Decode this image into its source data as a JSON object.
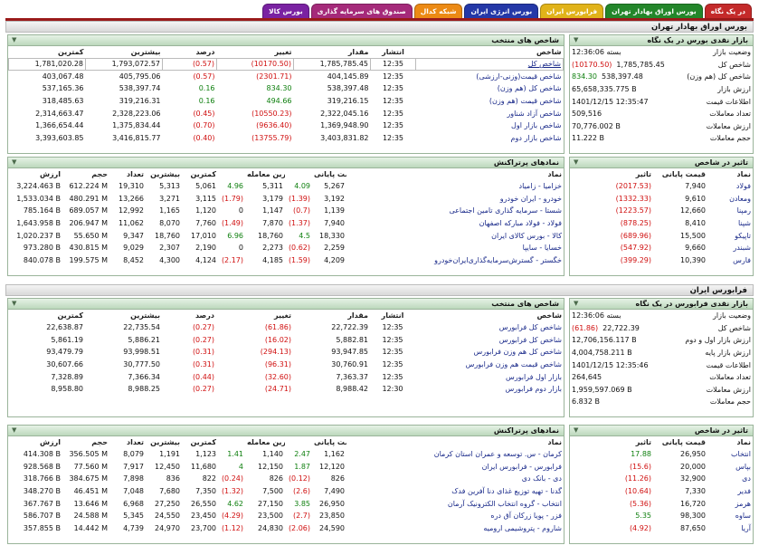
{
  "tabs": [
    {
      "label": "در یک نگاه",
      "color": "#c42a2a"
    },
    {
      "label": "بورس اوراق بهادار تهران",
      "color": "#23862a"
    },
    {
      "label": "فرابورس ایران",
      "color": "#e1b319"
    },
    {
      "label": "بورس انرژی ایران",
      "color": "#2438a7"
    },
    {
      "label": "شبکه کدال",
      "color": "#ec8a14"
    },
    {
      "label": "صندوق های سرمایه گذاری",
      "color": "#a52a7a"
    },
    {
      "label": "بورس کالا",
      "color": "#7a22a2"
    }
  ],
  "s1": {
    "title": "بورس اوراق بهادار تهران",
    "glance": {
      "title": "بازار نقدی بورس در یک نگاه",
      "rows": [
        {
          "k": "وضعیت بازار",
          "v": "بسته 12:36:06"
        },
        {
          "k": "شاخص کل",
          "v": "(10170.50)",
          "v2": "1,785,785.45",
          "c": "neg"
        },
        {
          "k": "شاخص کل (هم وزن)",
          "v": "834.30",
          "v2": "538,397.48",
          "c": "pos"
        },
        {
          "k": "ارزش بازار",
          "v": "65,658,335.775 B"
        },
        {
          "k": "اطلاعات قیمت",
          "v": "1401/12/15 12:35:47"
        },
        {
          "k": "تعداد معاملات",
          "v": "509,516"
        },
        {
          "k": "ارزش معاملات",
          "v": "70,776.002 B"
        },
        {
          "k": "حجم معاملات",
          "v": "11.222 B"
        }
      ]
    },
    "indices": {
      "title": "شاخص های منتخب",
      "headers": [
        "شاخص",
        "انتشار",
        "مقدار",
        "تغییر",
        "درصد",
        "بیشترین",
        "کمترین"
      ],
      "rows": [
        {
          "name": "شاخص کل",
          "time": "12:35",
          "value": "1,785,785.45",
          "change": "(10170.50)",
          "pct": "(0.57)",
          "high": "1,793,072.57",
          "low": "1,781,020.28",
          "c": "neg",
          "boxed": true
        },
        {
          "name": "شاخص قیمت(وزنی-ارزشی)",
          "time": "12:35",
          "value": "404,145.89",
          "change": "(2301.71)",
          "pct": "(0.57)",
          "high": "405,795.06",
          "low": "403,067.48",
          "c": "neg"
        },
        {
          "name": "شاخص کل (هم وزن)",
          "time": "12:35",
          "value": "538,397.48",
          "change": "834.30",
          "pct": "0.16",
          "high": "538,397.74",
          "low": "537,165.36",
          "c": "pos"
        },
        {
          "name": "شاخص قیمت (هم وزن)",
          "time": "12:35",
          "value": "319,216.15",
          "change": "494.66",
          "pct": "0.16",
          "high": "319,216.31",
          "low": "318,485.63",
          "c": "pos"
        },
        {
          "name": "شاخص آزاد شناور",
          "time": "12:35",
          "value": "2,322,045.16",
          "change": "(10550.23)",
          "pct": "(0.45)",
          "high": "2,328,223.06",
          "low": "2,314,663.47",
          "c": "neg"
        },
        {
          "name": "شاخص بازار اول",
          "time": "12:35",
          "value": "1,369,948.90",
          "change": "(9636.40)",
          "pct": "(0.70)",
          "high": "1,375,834.44",
          "low": "1,366,654.44",
          "c": "neg"
        },
        {
          "name": "شاخص بازار دوم",
          "time": "12:35",
          "value": "3,403,831.82",
          "change": "(13755.79)",
          "pct": "(0.40)",
          "high": "3,416,815.77",
          "low": "3,393,603.85",
          "c": "neg"
        }
      ]
    },
    "impact": {
      "title": "تاثیر در شاخص",
      "headers": [
        "نماد",
        "قیمت پایانی",
        "تاثیر"
      ],
      "rows": [
        {
          "sym": "فولاد",
          "price": "7,940",
          "impact": "(2017.53)",
          "c": "neg"
        },
        {
          "sym": "ومعادن",
          "price": "9,610",
          "impact": "(1332.33)",
          "c": "neg"
        },
        {
          "sym": "رمپنا",
          "price": "12,660",
          "impact": "(1223.57)",
          "c": "neg"
        },
        {
          "sym": "شپنا",
          "price": "8,410",
          "impact": "(878.25)",
          "c": "neg"
        },
        {
          "sym": "تاپیکو",
          "price": "15,500",
          "impact": "(689.96)",
          "c": "neg"
        },
        {
          "sym": "شبندر",
          "price": "9,660",
          "impact": "(547.92)",
          "c": "neg"
        },
        {
          "sym": "فارس",
          "price": "10,390",
          "impact": "(399.29)",
          "c": "neg"
        }
      ]
    },
    "active": {
      "title": "نمادهای پرتراکنش",
      "headers": [
        "نماد",
        "قیمت پایانی",
        "",
        "آخرین معامله",
        "",
        "کمترین",
        "بیشترین",
        "تعداد",
        "حجم",
        "ارزش"
      ],
      "rows": [
        {
          "name": "خزامیا - زامیاد",
          "close": "5,267",
          "cc": "4.09",
          "last": "5,311",
          "lc": "4.96",
          "low": "5,061",
          "high": "5,313",
          "count": "19,310",
          "vol": "612.224 M",
          "val": "3,224.463 B",
          "c1": "pos",
          "c2": "pos"
        },
        {
          "name": "خودرو - ایران خودرو",
          "close": "3,192",
          "cc": "(1.39)",
          "last": "3,179",
          "lc": "(1.79)",
          "low": "3,115",
          "high": "3,271",
          "count": "13,266",
          "vol": "480.291 M",
          "val": "1,533.034 B",
          "c1": "neg",
          "c2": "neg"
        },
        {
          "name": "شستا - سرمایه گذاری تامین اجتماعی",
          "close": "1,139",
          "cc": "(0.7)",
          "last": "1,147",
          "lc": "0",
          "low": "1,120",
          "high": "1,165",
          "count": "12,992",
          "vol": "689.057 M",
          "val": "785.164 B",
          "c1": "neg",
          "c2": ""
        },
        {
          "name": "فولاد - فولاد مبارکه اصفهان",
          "close": "7,940",
          "cc": "(1.37)",
          "last": "7,870",
          "lc": "(1.49)",
          "low": "7,760",
          "high": "8,070",
          "count": "11,062",
          "vol": "206.947 M",
          "val": "1,643.958 B",
          "c1": "neg",
          "c2": "neg"
        },
        {
          "name": "کالا - بورس کالای ایران",
          "close": "18,330",
          "cc": "4.5",
          "last": "18,760",
          "lc": "6.96",
          "low": "17,010",
          "high": "18,760",
          "count": "9,347",
          "vol": "55.650 M",
          "val": "1,020.237 B",
          "c1": "pos",
          "c2": "pos"
        },
        {
          "name": "خسایا - سایپا",
          "close": "2,259",
          "cc": "(0.62)",
          "last": "2,273",
          "lc": "0",
          "low": "2,190",
          "high": "2,307",
          "count": "9,029",
          "vol": "430.815 M",
          "val": "973.280 B",
          "c1": "neg",
          "c2": ""
        },
        {
          "name": "خگستر - گسترش‌سرمایه‌گذاری‌ایران‌خودرو",
          "close": "4,209",
          "cc": "(1.59)",
          "last": "4,185",
          "lc": "(2.17)",
          "low": "4,124",
          "high": "4,300",
          "count": "8,452",
          "vol": "199.575 M",
          "val": "840.078 B",
          "c1": "neg",
          "c2": "neg"
        }
      ]
    }
  },
  "s2": {
    "title": "فرابورس ایران",
    "glance": {
      "title": "بازار نقدی فرابورس در یک نگاه",
      "rows": [
        {
          "k": "وضعیت بازار",
          "v": "بسته 12:36:06"
        },
        {
          "k": "شاخص کل",
          "v": "(61.86)",
          "v2": "22,722.39",
          "c": "neg"
        },
        {
          "k": "ارزش بازار اول و دوم",
          "v": "12,706,156.117 B"
        },
        {
          "k": "ارزش بازار پایه",
          "v": "4,004,758.211 B"
        },
        {
          "k": "اطلاعات قیمت",
          "v": "1401/12/15 12:35:46"
        },
        {
          "k": "تعداد معاملات",
          "v": "264,645"
        },
        {
          "k": "ارزش معاملات",
          "v": "1,959,597.069 B"
        },
        {
          "k": "حجم معاملات",
          "v": "6.832 B"
        }
      ]
    },
    "indices": {
      "title": "شاخص های منتخب",
      "headers": [
        "شاخص",
        "انتشار",
        "مقدار",
        "تغییر",
        "درصد",
        "بیشترین",
        "کمترین"
      ],
      "rows": [
        {
          "name": "شاخص کل فرابورس",
          "time": "12:35",
          "value": "22,722.39",
          "change": "(61.86)",
          "pct": "(0.27)",
          "high": "22,735.54",
          "low": "22,638.87",
          "c": "neg"
        },
        {
          "name": "شاخص کل فرابورس",
          "time": "12:35",
          "value": "5,882.81",
          "change": "(16.02)",
          "pct": "(0.27)",
          "high": "5,886.21",
          "low": "5,861.19",
          "c": "neg"
        },
        {
          "name": "شاخص کل هم وزن فرابورس",
          "time": "12:35",
          "value": "93,947.85",
          "change": "(294.13)",
          "pct": "(0.31)",
          "high": "93,998.51",
          "low": "93,479.79",
          "c": "neg"
        },
        {
          "name": "شاخص قیمت هم وزن فرابورس",
          "time": "12:35",
          "value": "30,760.91",
          "change": "(96.31)",
          "pct": "(0.31)",
          "high": "30,777.50",
          "low": "30,607.66",
          "c": "neg"
        },
        {
          "name": "بازار اول فرابورس",
          "time": "12:35",
          "value": "7,363.37",
          "change": "(32.60)",
          "pct": "(0.44)",
          "high": "7,366.34",
          "low": "7,328.89",
          "c": "neg"
        },
        {
          "name": "بازار دوم فرابورس",
          "time": "12:30",
          "value": "8,988.42",
          "change": "(24.71)",
          "pct": "(0.27)",
          "high": "8,988.25",
          "low": "8,958.80",
          "c": "neg"
        }
      ]
    },
    "impact": {
      "title": "تاثیر در شاخص",
      "headers": [
        "نماد",
        "قیمت پایانی",
        "تاثیر"
      ],
      "rows": [
        {
          "sym": "انتخاب",
          "price": "26,950",
          "impact": "17.88",
          "c": "pos"
        },
        {
          "sym": "بپاس",
          "price": "20,000",
          "impact": "(15.6)",
          "c": "neg"
        },
        {
          "sym": "دی",
          "price": "32,900",
          "impact": "(11.26)",
          "c": "neg"
        },
        {
          "sym": "فدیر",
          "price": "7,330",
          "impact": "(10.64)",
          "c": "neg"
        },
        {
          "sym": "هرمز",
          "price": "16,720",
          "impact": "(5.36)",
          "c": "neg"
        },
        {
          "sym": "ساوه",
          "price": "98,300",
          "impact": "5.35",
          "c": "pos"
        },
        {
          "sym": "آریا",
          "price": "87,650",
          "impact": "(4.92)",
          "c": "neg"
        }
      ]
    },
    "active": {
      "title": "نمادهای پرتراکنش",
      "headers": [
        "نماد",
        "قیمت پایانی",
        "",
        "آخرین معامله",
        "",
        "کمترین",
        "بیشترین",
        "تعداد",
        "حجم",
        "ارزش"
      ],
      "rows": [
        {
          "name": "کرمان - س. توسعه و عمران استان کرمان",
          "close": "1,162",
          "cc": "2.47",
          "last": "1,140",
          "lc": "1.41",
          "low": "1,123",
          "high": "1,191",
          "count": "8,079",
          "vol": "356.505 M",
          "val": "414.308 B",
          "c1": "pos",
          "c2": "pos"
        },
        {
          "name": "فرابورس - فرابورس ایران",
          "close": "12,120",
          "cc": "1.87",
          "last": "12,150",
          "lc": "4",
          "low": "11,680",
          "high": "12,450",
          "count": "7,917",
          "vol": "77.560 M",
          "val": "928.568 B",
          "c1": "pos",
          "c2": "pos"
        },
        {
          "name": "دی - بانک دی",
          "close": "826",
          "cc": "(0.12)",
          "last": "826",
          "lc": "(0.24)",
          "low": "822",
          "high": "836",
          "count": "7,898",
          "vol": "384.675 M",
          "val": "318.766 B",
          "c1": "neg",
          "c2": "neg"
        },
        {
          "name": "گدنا - تهیه توزیع غذای دنا آفرین فدک",
          "close": "7,490",
          "cc": "(2.6)",
          "last": "7,500",
          "lc": "(1.32)",
          "low": "7,350",
          "high": "7,680",
          "count": "7,048",
          "vol": "46.451 M",
          "val": "348.270 B",
          "c1": "neg",
          "c2": "neg"
        },
        {
          "name": "انتخاب - گروه انتخاب الکترونیک آرمان",
          "close": "26,950",
          "cc": "3.85",
          "last": "27,150",
          "lc": "4.62",
          "low": "26,550",
          "high": "27,250",
          "count": "6,968",
          "vol": "13.646 M",
          "val": "367.767 B",
          "c1": "pos",
          "c2": "pos"
        },
        {
          "name": "فزر - پویا زرکان آق دره",
          "close": "23,850",
          "cc": "(2.7)",
          "last": "23,500",
          "lc": "(4.29)",
          "low": "23,450",
          "high": "24,550",
          "count": "5,345",
          "vol": "24.588 M",
          "val": "586.707 B",
          "c1": "neg",
          "c2": "neg"
        },
        {
          "name": "شاروم - پتروشیمی اروميه",
          "close": "24,590",
          "cc": "(2.06)",
          "last": "24,830",
          "lc": "(1.12)",
          "low": "23,700",
          "high": "24,970",
          "count": "4,739",
          "vol": "14.442 M",
          "val": "357.855 B",
          "c1": "neg",
          "c2": "neg"
        }
      ]
    }
  }
}
